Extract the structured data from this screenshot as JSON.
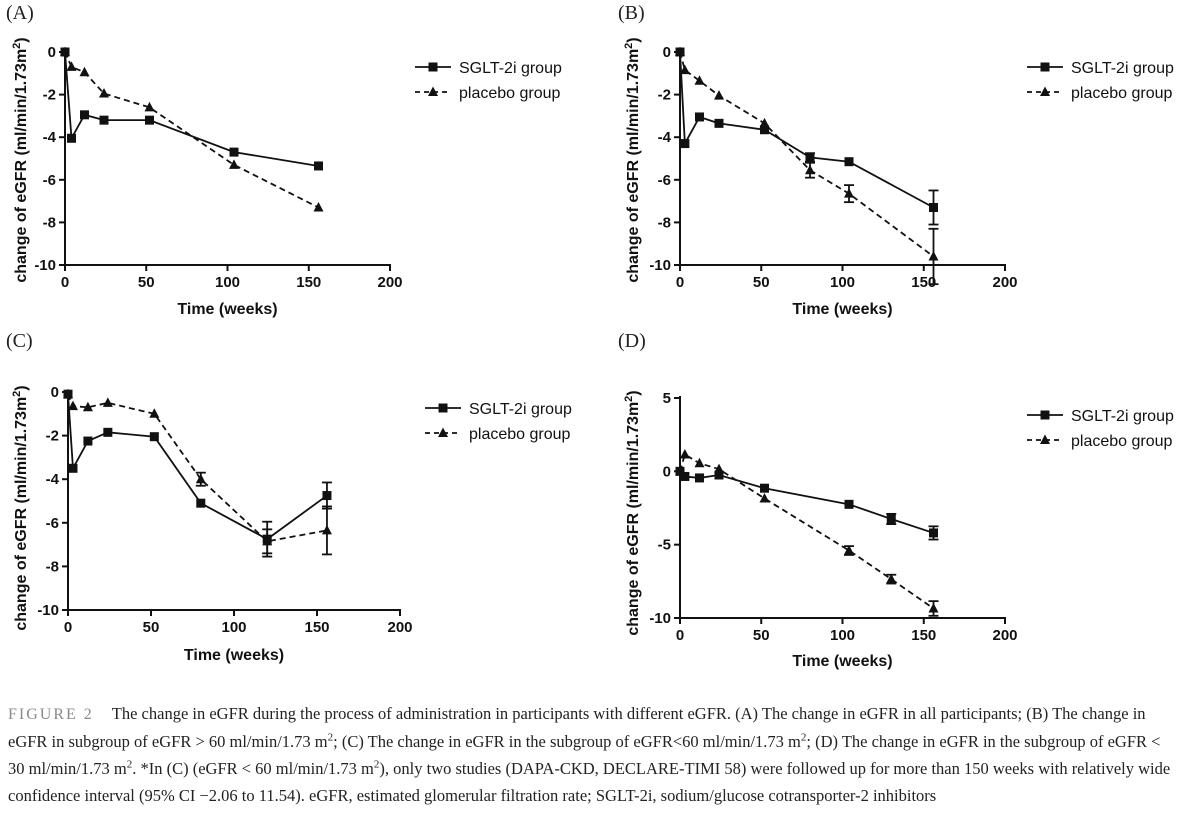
{
  "chart_data": [
    {
      "type": "line",
      "panel_label": "(A)",
      "xlabel": "Time (weeks)",
      "ylabel_main": "change of eGFR (ml/min/1.73m",
      "ylabel_sup": "2",
      "ylabel_end": ")",
      "xlim": [
        0,
        200
      ],
      "xticks": [
        0,
        50,
        100,
        150,
        200
      ],
      "ylim": [
        -10,
        0
      ],
      "yticks": [
        0,
        -2,
        -4,
        -6,
        -8,
        -10
      ],
      "legend_position": "top-right",
      "series": [
        {
          "name": "SGLT-2i group",
          "marker": "square",
          "dash": false,
          "x": [
            0,
            4,
            12,
            24,
            52,
            104,
            156
          ],
          "y": [
            0,
            -4.05,
            -2.95,
            -3.2,
            -3.2,
            -4.7,
            -5.35
          ],
          "err": [
            0,
            0,
            0,
            0,
            0,
            0,
            0
          ]
        },
        {
          "name": "placebo group",
          "marker": "triangle",
          "dash": true,
          "x": [
            0,
            4,
            12,
            24,
            52,
            104,
            156
          ],
          "y": [
            0,
            -0.7,
            -0.95,
            -1.95,
            -2.6,
            -5.3,
            -7.3
          ],
          "err": [
            0,
            0,
            0,
            0,
            0,
            0,
            0
          ]
        }
      ]
    },
    {
      "type": "line",
      "panel_label": "(B)",
      "xlabel": "Time (weeks)",
      "ylabel_main": "change of eGFR (ml/min/1.73m",
      "ylabel_sup": "2",
      "ylabel_end": ")",
      "xlim": [
        0,
        200
      ],
      "xticks": [
        0,
        50,
        100,
        150,
        200
      ],
      "ylim": [
        -10,
        0
      ],
      "yticks": [
        0,
        -2,
        -4,
        -6,
        -8,
        -10
      ],
      "legend_position": "top-right",
      "series": [
        {
          "name": "SGLT-2i group",
          "marker": "square",
          "dash": false,
          "x": [
            0,
            3,
            12,
            24,
            52,
            80,
            104,
            156
          ],
          "y": [
            0,
            -4.3,
            -3.05,
            -3.35,
            -3.65,
            -4.95,
            -5.15,
            -7.3
          ],
          "err": [
            0,
            0,
            0,
            0,
            0,
            0.2,
            0,
            0.8
          ]
        },
        {
          "name": "placebo group",
          "marker": "triangle",
          "dash": true,
          "x": [
            0,
            3,
            12,
            24,
            52,
            80,
            104,
            156
          ],
          "y": [
            0,
            -0.85,
            -1.35,
            -2.05,
            -3.35,
            -5.55,
            -6.65,
            -9.6
          ],
          "err": [
            0,
            0,
            0,
            0,
            0,
            0.35,
            0.4,
            1.3
          ]
        }
      ]
    },
    {
      "type": "line",
      "panel_label": "(C)",
      "xlabel": "Time (weeks)",
      "ylabel_main": "change of eGFR (ml/min/1.73m",
      "ylabel_sup": "2",
      "ylabel_end": ")",
      "xlim": [
        0,
        200
      ],
      "xticks": [
        0,
        50,
        100,
        150,
        200
      ],
      "ylim": [
        -10,
        0
      ],
      "yticks": [
        0,
        -2,
        -4,
        -6,
        -8,
        -10
      ],
      "legend_position": "top-right",
      "series": [
        {
          "name": "SGLT-2i group",
          "marker": "square",
          "dash": false,
          "x": [
            0,
            3,
            12,
            24,
            52,
            80,
            120,
            156
          ],
          "y": [
            -0.1,
            -3.5,
            -2.25,
            -1.85,
            -2.05,
            -5.1,
            -6.75,
            -4.75
          ],
          "err": [
            0,
            0,
            0,
            0,
            0,
            0,
            0.8,
            0.6
          ]
        },
        {
          "name": "placebo group",
          "marker": "triangle",
          "dash": true,
          "x": [
            0,
            3,
            12,
            24,
            52,
            80,
            120,
            156
          ],
          "y": [
            -0.1,
            -0.65,
            -0.7,
            -0.5,
            -1.0,
            -4.0,
            -6.85,
            -6.35
          ],
          "err": [
            0,
            0,
            0,
            0,
            0,
            0.3,
            0.55,
            1.1
          ]
        }
      ]
    },
    {
      "type": "line",
      "panel_label": "(D)",
      "xlabel": "Time (weeks)",
      "ylabel_main": "change of eGFR (ml/min/1.73m",
      "ylabel_sup": "2",
      "ylabel_end": ")",
      "xlim": [
        0,
        200
      ],
      "xticks": [
        0,
        50,
        100,
        150,
        200
      ],
      "ylim": [
        -10,
        5
      ],
      "yticks": [
        5,
        0,
        -5,
        -10
      ],
      "legend_position": "top-right",
      "series": [
        {
          "name": "SGLT-2i group",
          "marker": "square",
          "dash": false,
          "x": [
            0,
            3,
            12,
            24,
            52,
            104,
            130,
            156
          ],
          "y": [
            0,
            -0.35,
            -0.45,
            -0.25,
            -1.15,
            -2.25,
            -3.25,
            -4.2
          ],
          "err": [
            0,
            0,
            0,
            0,
            0,
            0,
            0.35,
            0.45
          ]
        },
        {
          "name": "placebo group",
          "marker": "triangle",
          "dash": true,
          "x": [
            0,
            3,
            12,
            24,
            52,
            104,
            130,
            156
          ],
          "y": [
            0,
            1.15,
            0.55,
            0.15,
            -1.85,
            -5.4,
            -7.35,
            -9.35
          ],
          "err": [
            0,
            0,
            0,
            0,
            0,
            0.3,
            0.3,
            0.5
          ]
        }
      ]
    }
  ],
  "caption": {
    "label": "FIGURE 2",
    "p1": "The change in eGFR during the process of administration in participants with different eGFR. (A) The change in eGFR in all participants; (B) The change in eGFR in subgroup of eGFR > 60 ml/min/1.73 m",
    "sup1": "2",
    "p2": "; (C) The change in eGFR in the subgroup of eGFR<60 ml/min/1.73 m",
    "sup2": "2",
    "p3": "; (D) The change in eGFR in the subgroup of eGFR < 30 ml/min/1.73 m",
    "sup3": "2",
    "p4": ". *In (C) (eGFR < 60 ml/min/1.73 m",
    "sup4": "2",
    "p5": "), only two studies (DAPA-CKD, DECLARE-TIMI 58) were followed up for more than 150 weeks with relatively wide confidence interval (95% CI −2.06 to 11.54). eGFR, estimated glomerular filtration rate; SGLT-2i, sodium/glucose cotransporter-2 inhibitors"
  }
}
